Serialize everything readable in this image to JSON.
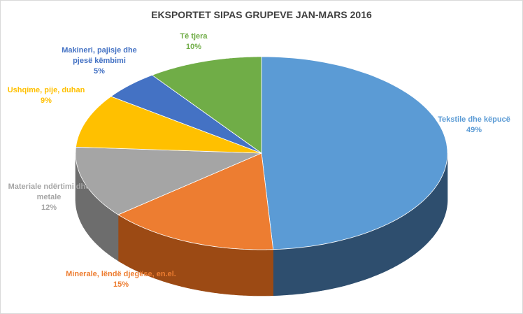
{
  "chart_data": {
    "type": "pie",
    "title": "EKSPORTET SIPAS GRUPEVE JAN-MARS 2016",
    "slices": [
      {
        "label": "Tekstile dhe këpucë",
        "value": 49,
        "value_label": "49%",
        "color": "#5b9bd5",
        "side_color": "#2e4e6e"
      },
      {
        "label": "Minerale, lëndë djegëse, en.el.",
        "value": 15,
        "value_label": "15%",
        "color": "#ed7d31",
        "side_color": "#9c4a14"
      },
      {
        "label": "Materiale ndërtimi dhe metale",
        "value": 12,
        "value_label": "12%",
        "color": "#a5a5a5",
        "side_color": "#6d6d6d"
      },
      {
        "label": "Ushqime, pije, duhan",
        "value": 9,
        "value_label": "9%",
        "color": "#ffc000",
        "side_color": "#a67d00"
      },
      {
        "label": "Makineri, pajisje dhe pjesë këmbimi",
        "value": 5,
        "value_label": "5%",
        "color": "#4472c4",
        "side_color": "#2a4a82"
      },
      {
        "label": "Të tjera",
        "value": 10,
        "value_label": "10%",
        "color": "#70ad47",
        "side_color": "#476f2c"
      }
    ],
    "legend": "none",
    "data_labels": "outside"
  }
}
